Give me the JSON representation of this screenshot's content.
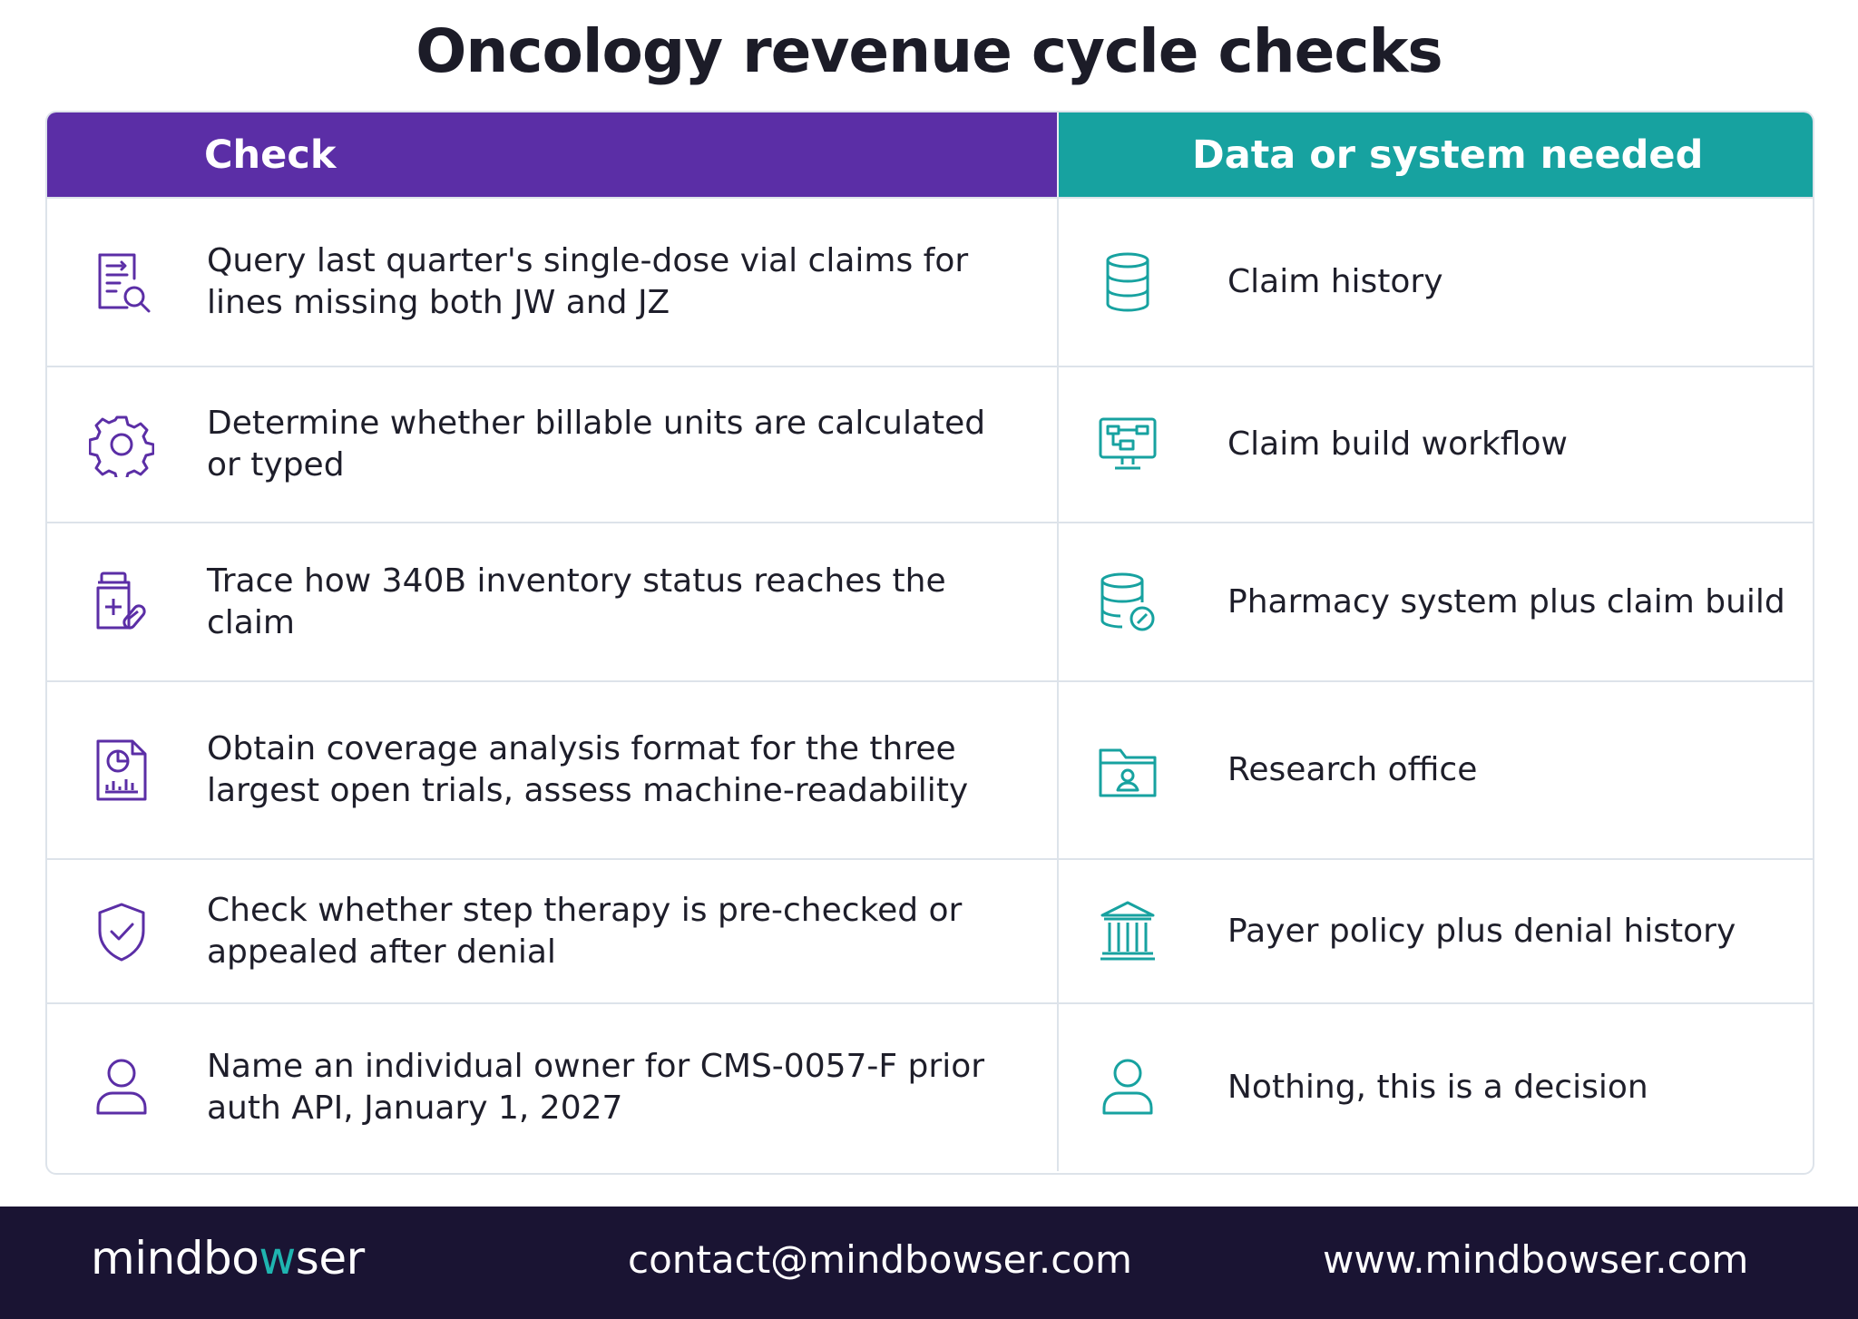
{
  "title": "Oncology revenue cycle checks",
  "table": {
    "headers": {
      "check": "Check",
      "data": "Data or system needed"
    },
    "rows": [
      {
        "check": "Query last quarter's single-dose vial claims for lines missing both JW and JZ",
        "check_icon": "document-search-icon",
        "data": "Claim history",
        "data_icon": "database-icon"
      },
      {
        "check": "Determine whether billable units are calculated or typed",
        "check_icon": "gear-icon",
        "data": "Claim build workflow",
        "data_icon": "monitor-workflow-icon"
      },
      {
        "check": "Trace how 340B inventory status reaches the claim",
        "check_icon": "medicine-bottle-icon",
        "data": "Pharmacy system plus claim build",
        "data_icon": "database-link-icon"
      },
      {
        "check": "Obtain coverage analysis format for the three largest open trials, assess machine-readability",
        "check_icon": "report-chart-icon",
        "data": "Research office",
        "data_icon": "folder-user-icon"
      },
      {
        "check": "Check whether step therapy is pre-checked or appealed after denial",
        "check_icon": "shield-check-icon",
        "data": "Payer policy plus denial history",
        "data_icon": "bank-building-icon"
      },
      {
        "check": "Name an individual owner for CMS-0057-F prior auth API, January 1, 2027",
        "check_icon": "user-icon",
        "data": "Nothing, this is a decision",
        "data_icon": "user-icon"
      }
    ]
  },
  "footer": {
    "brand_prefix": "mindbo",
    "brand_accent": "w",
    "brand_suffix": "ser",
    "email": "contact@mindbowser.com",
    "website": "www.mindbowser.com"
  },
  "colors": {
    "purple": "#5b2ea6",
    "teal": "#17a2a0",
    "footer": "#1a1433"
  }
}
